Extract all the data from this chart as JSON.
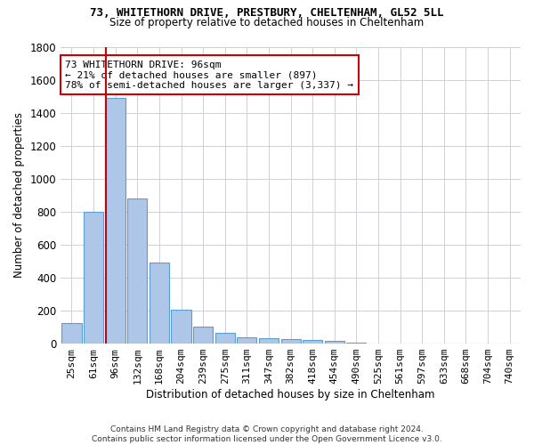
{
  "title_line1": "73, WHITETHORN DRIVE, PRESTBURY, CHELTENHAM, GL52 5LL",
  "title_line2": "Size of property relative to detached houses in Cheltenham",
  "xlabel": "Distribution of detached houses by size in Cheltenham",
  "ylabel": "Number of detached properties",
  "footer_line1": "Contains HM Land Registry data © Crown copyright and database right 2024.",
  "footer_line2": "Contains public sector information licensed under the Open Government Licence v3.0.",
  "categories": [
    "25sqm",
    "61sqm",
    "96sqm",
    "132sqm",
    "168sqm",
    "204sqm",
    "239sqm",
    "275sqm",
    "311sqm",
    "347sqm",
    "382sqm",
    "418sqm",
    "454sqm",
    "490sqm",
    "525sqm",
    "561sqm",
    "597sqm",
    "633sqm",
    "668sqm",
    "704sqm",
    "740sqm"
  ],
  "values": [
    125,
    800,
    1490,
    880,
    490,
    205,
    103,
    65,
    40,
    35,
    30,
    22,
    15,
    5,
    3,
    2,
    2,
    1,
    1,
    1,
    0
  ],
  "bar_color": "#aec6e8",
  "bar_edge_color": "#5a9fd4",
  "vline_color": "#cc0000",
  "annotation_text": "73 WHITETHORN DRIVE: 96sqm\n← 21% of detached houses are smaller (897)\n78% of semi-detached houses are larger (3,337) →",
  "annotation_box_color": "#cc0000",
  "ylim": [
    0,
    1800
  ],
  "yticks": [
    0,
    200,
    400,
    600,
    800,
    1000,
    1200,
    1400,
    1600,
    1800
  ],
  "background_color": "#ffffff",
  "grid_color": "#d0d0d8"
}
